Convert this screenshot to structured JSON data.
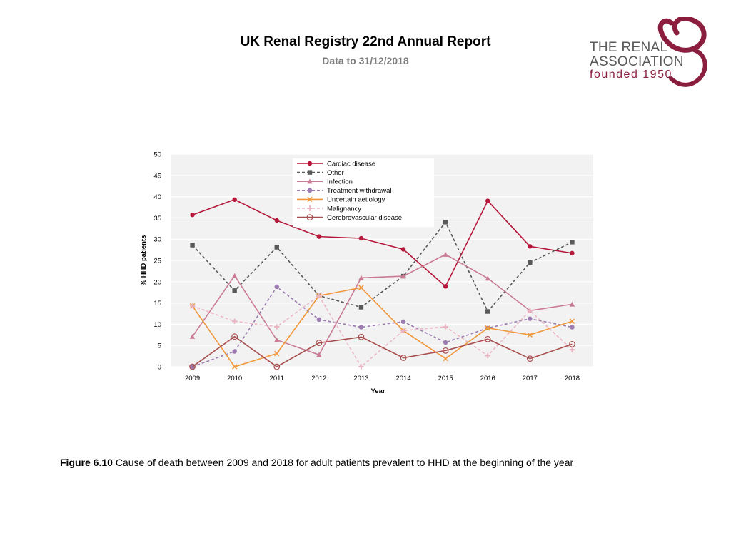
{
  "header": {
    "title": "UK Renal Registry 22nd Annual Report",
    "subtitle": "Data to 31/12/2018"
  },
  "logo": {
    "line1": "THE RENAL",
    "line2": "ASSOCIATION",
    "line3": "founded 1950",
    "color": "#8b1e3f"
  },
  "caption": {
    "label": "Figure 6.10",
    "text": "Cause of death between 2009 and 2018 for adult patients prevalent to HHD at the beginning of the year"
  },
  "chart_data": {
    "type": "line",
    "title": "",
    "xlabel": "Year",
    "ylabel": "% HHD patients",
    "x": [
      "2009",
      "2010",
      "2011",
      "2012",
      "2013",
      "2014",
      "2015",
      "2016",
      "2017",
      "2018"
    ],
    "ylim": [
      0,
      50
    ],
    "yticks": [
      0,
      5,
      10,
      15,
      20,
      25,
      30,
      35,
      40,
      45,
      50
    ],
    "grid": true,
    "legend": "top-center",
    "series": [
      {
        "name": "Cardiac disease",
        "color": "#b5173b",
        "dash": "solid",
        "marker": "circle",
        "values": [
          35.7,
          39.3,
          34.4,
          30.6,
          30.2,
          27.6,
          18.9,
          39.0,
          28.3,
          26.7
        ]
      },
      {
        "name": "Other",
        "color": "#595959",
        "dash": "dashed",
        "marker": "square",
        "values": [
          28.6,
          17.9,
          28.1,
          16.7,
          14.0,
          21.3,
          34.0,
          13.0,
          24.5,
          29.3
        ]
      },
      {
        "name": "Infection",
        "color": "#c97b93",
        "dash": "solid",
        "marker": "triangle",
        "values": [
          7.1,
          21.4,
          6.3,
          2.8,
          20.9,
          21.3,
          26.4,
          20.8,
          13.2,
          14.7
        ]
      },
      {
        "name": "Treatment withdrawal",
        "color": "#9b7bb0",
        "dash": "dashed",
        "marker": "circle",
        "values": [
          0,
          3.6,
          18.8,
          11.1,
          9.3,
          10.6,
          5.7,
          9.1,
          11.3,
          9.3
        ]
      },
      {
        "name": "Uncertain aetiology",
        "color": "#f0973b",
        "dash": "solid",
        "marker": "x",
        "values": [
          14.3,
          0,
          3.1,
          16.7,
          18.6,
          8.5,
          1.9,
          9.1,
          7.5,
          10.7
        ]
      },
      {
        "name": "Malignancy",
        "color": "#eab6c4",
        "dash": "dashed",
        "marker": "plus",
        "values": [
          14.3,
          10.7,
          9.4,
          16.7,
          0,
          8.5,
          9.4,
          2.6,
          13.2,
          4.0
        ]
      },
      {
        "name": "Cerebrovascular disease",
        "color": "#a84d4d",
        "dash": "solid",
        "marker": "open-circle",
        "values": [
          0,
          7.1,
          0,
          5.6,
          7.0,
          2.1,
          3.8,
          6.5,
          1.9,
          5.3
        ]
      }
    ]
  }
}
